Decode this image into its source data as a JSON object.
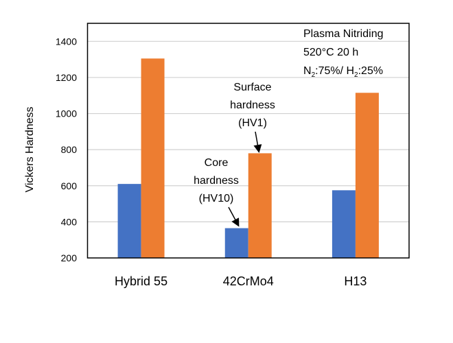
{
  "chart_data": {
    "type": "bar",
    "title": "",
    "xlabel": "",
    "ylabel": "Vickers Hardness",
    "ylim": [
      200,
      1500
    ],
    "yticks": [
      200,
      400,
      600,
      800,
      1000,
      1200,
      1400
    ],
    "grid": true,
    "categories": [
      "Hybrid 55",
      "42CrMo4",
      "H13"
    ],
    "series": [
      {
        "name": "Core hardness (HV10)",
        "color": "#4472C4",
        "values": [
          610,
          365,
          575
        ]
      },
      {
        "name": "Surface hardness (HV1)",
        "color": "#ED7D31",
        "values": [
          1305,
          780,
          1115
        ]
      }
    ],
    "annotations": {
      "surface": [
        "Surface",
        "hardness",
        "(HV1)"
      ],
      "core": [
        "Core",
        "hardness",
        "(HV10)"
      ]
    },
    "info_box": {
      "line1": "Plasma Nitriding",
      "line2": "520°C 20 h",
      "n2": "N",
      "n2_sub": "2",
      "n2_val": ":75%/ H",
      "h2_sub": "2",
      "h2_val": ":25%"
    }
  }
}
